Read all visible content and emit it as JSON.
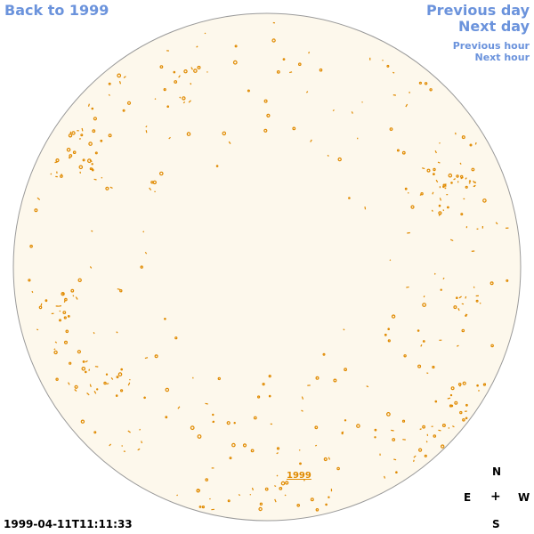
{
  "nav": {
    "back": "Back to 1999",
    "previous_day": "Previous day",
    "next_day": "Next day",
    "previous_hour": "Previous hour",
    "next_hour": "Next hour"
  },
  "image": {
    "year_label": "1999",
    "timestamp": "1999-04-11T11:11:33",
    "disk_color": "#fdf8ec",
    "feature_color": "#e08a00"
  },
  "compass": {
    "north": "N",
    "east": "E",
    "center": "+",
    "west": "W",
    "south": "S"
  }
}
